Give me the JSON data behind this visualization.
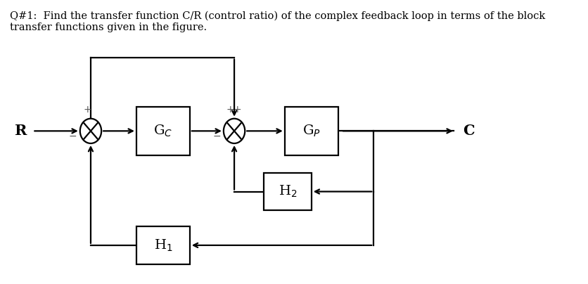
{
  "title_line1": "Q#1:  Find the transfer function C/R (control ratio) of the complex feedback loop in terms of the block",
  "title_line2": "transfer functions given in the figure.",
  "bg_color": "#ffffff",
  "text_color": "#000000",
  "gc_label": "G$_{C}$",
  "gp_label": "G$_{P}$",
  "h1_label": "H$_{1}$",
  "h2_label": "H$_{2}$",
  "R_label": "R",
  "C_label": "C",
  "lw": 1.6,
  "font_size_title": 10.5,
  "font_size_block": 14,
  "font_size_RC": 15,
  "font_size_sign": 10
}
